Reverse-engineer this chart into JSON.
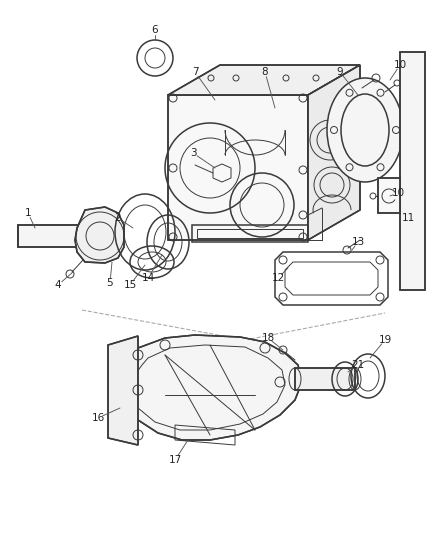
{
  "bg_color": "#ffffff",
  "line_color": "#3a3a3a",
  "label_color": "#222222",
  "figsize": [
    4.39,
    5.33
  ],
  "dpi": 100,
  "lw_main": 1.1,
  "lw_thin": 0.7,
  "label_fs": 7.5
}
